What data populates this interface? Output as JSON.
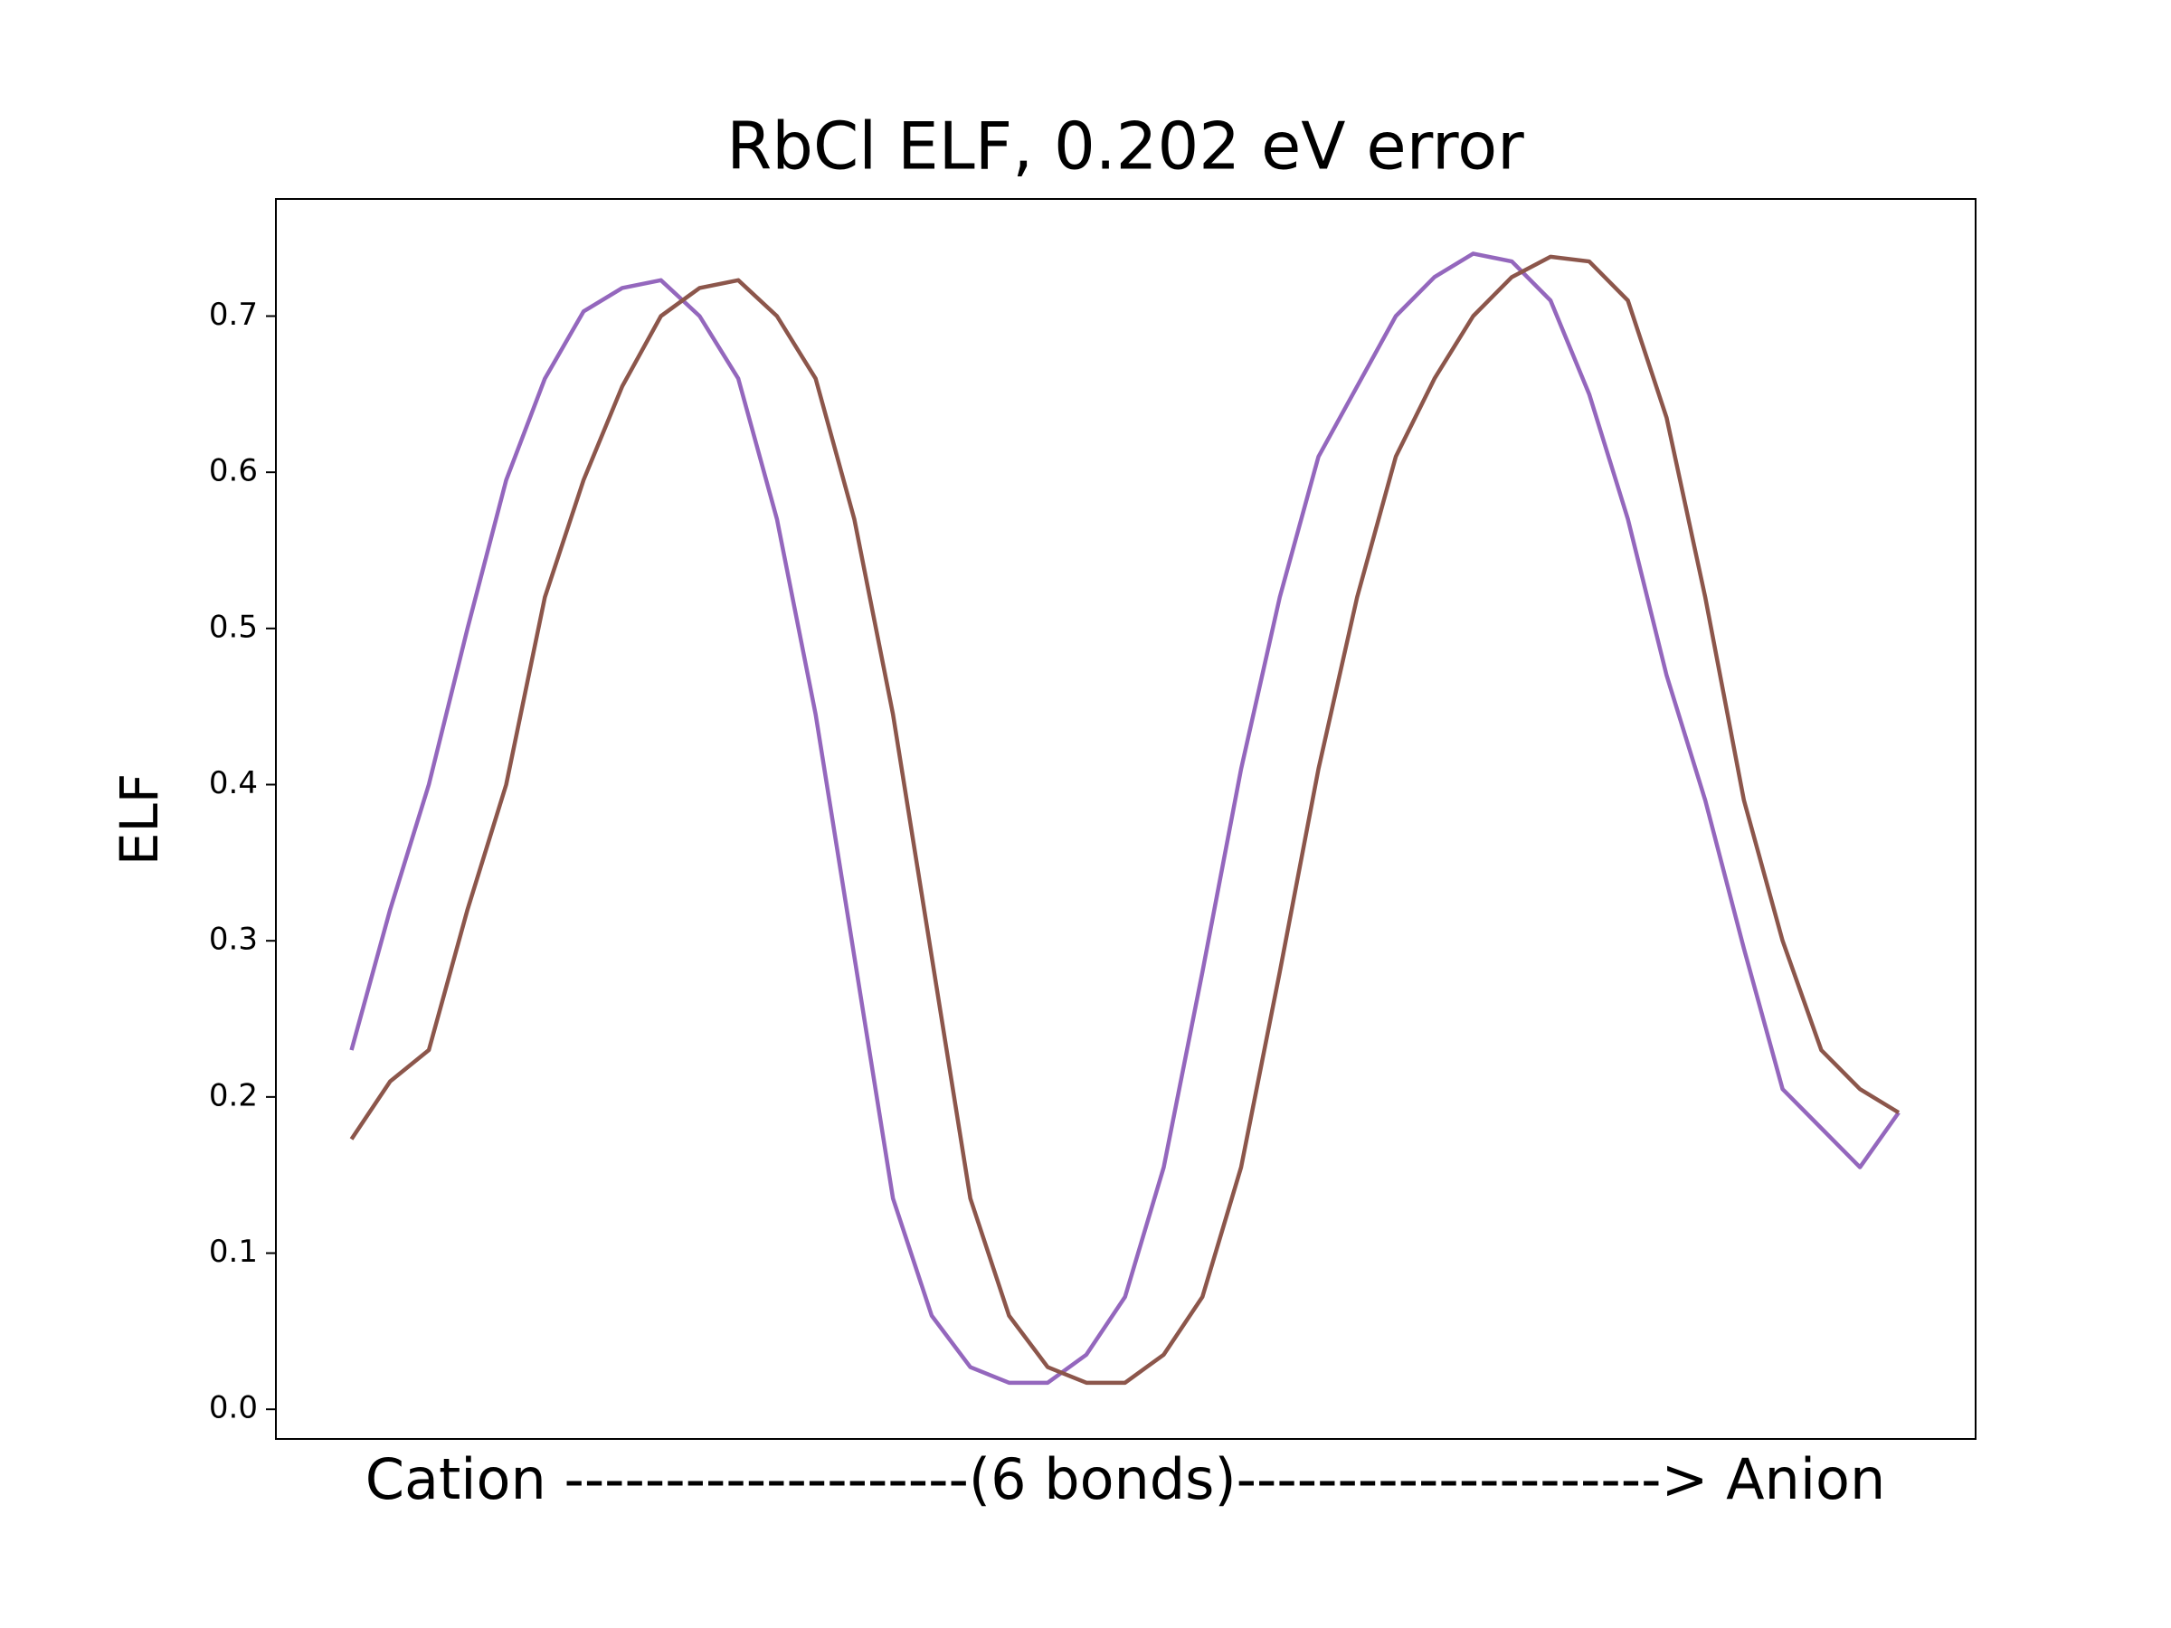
{
  "chart_data": {
    "type": "line",
    "title": "RbCl ELF, 0.202 eV error",
    "x_label": "Cation --------------------(6 bonds)---------------------> Anion",
    "y_label": "ELF",
    "x": [
      0,
      0.5,
      1,
      1.5,
      2,
      2.5,
      3,
      3.5,
      4,
      4.5,
      5,
      5.5,
      6,
      6.5,
      7,
      7.5,
      8,
      8.5,
      9,
      9.5,
      10,
      10.5,
      11,
      11.5,
      12,
      12.5,
      13,
      13.5,
      14,
      14.5,
      15,
      15.5,
      16,
      16.5,
      17,
      17.5,
      18,
      18.5,
      19,
      19.5,
      20
    ],
    "series": [
      {
        "color": "#9467bd",
        "values": [
          0.23,
          0.32,
          0.4,
          0.5,
          0.595,
          0.66,
          0.703,
          0.718,
          0.723,
          0.7,
          0.66,
          0.57,
          0.445,
          0.29,
          0.135,
          0.06,
          0.027,
          0.017,
          0.017,
          0.035,
          0.072,
          0.155,
          0.28,
          0.41,
          0.52,
          0.61,
          0.655,
          0.7,
          0.725,
          0.74,
          0.735,
          0.71,
          0.65,
          0.57,
          0.47,
          0.39,
          0.295,
          0.205,
          0.18,
          0.155,
          0.19
        ]
      },
      {
        "color": "#8c564b",
        "values": [
          0.173,
          0.21,
          0.23,
          0.32,
          0.4,
          0.52,
          0.595,
          0.655,
          0.7,
          0.718,
          0.723,
          0.7,
          0.66,
          0.57,
          0.445,
          0.29,
          0.135,
          0.06,
          0.027,
          0.017,
          0.017,
          0.035,
          0.072,
          0.155,
          0.28,
          0.41,
          0.52,
          0.61,
          0.66,
          0.7,
          0.725,
          0.738,
          0.735,
          0.71,
          0.635,
          0.52,
          0.39,
          0.3,
          0.23,
          0.205,
          0.19
        ]
      }
    ],
    "xlim": [
      -0.977,
      20.995
    ],
    "ylim": [
      -0.019,
      0.775
    ],
    "yticks": [
      {
        "value": 0,
        "label": "0.0"
      },
      0.1,
      0.2,
      0.3,
      0.4,
      0.5,
      0.6,
      0.7
    ]
  }
}
